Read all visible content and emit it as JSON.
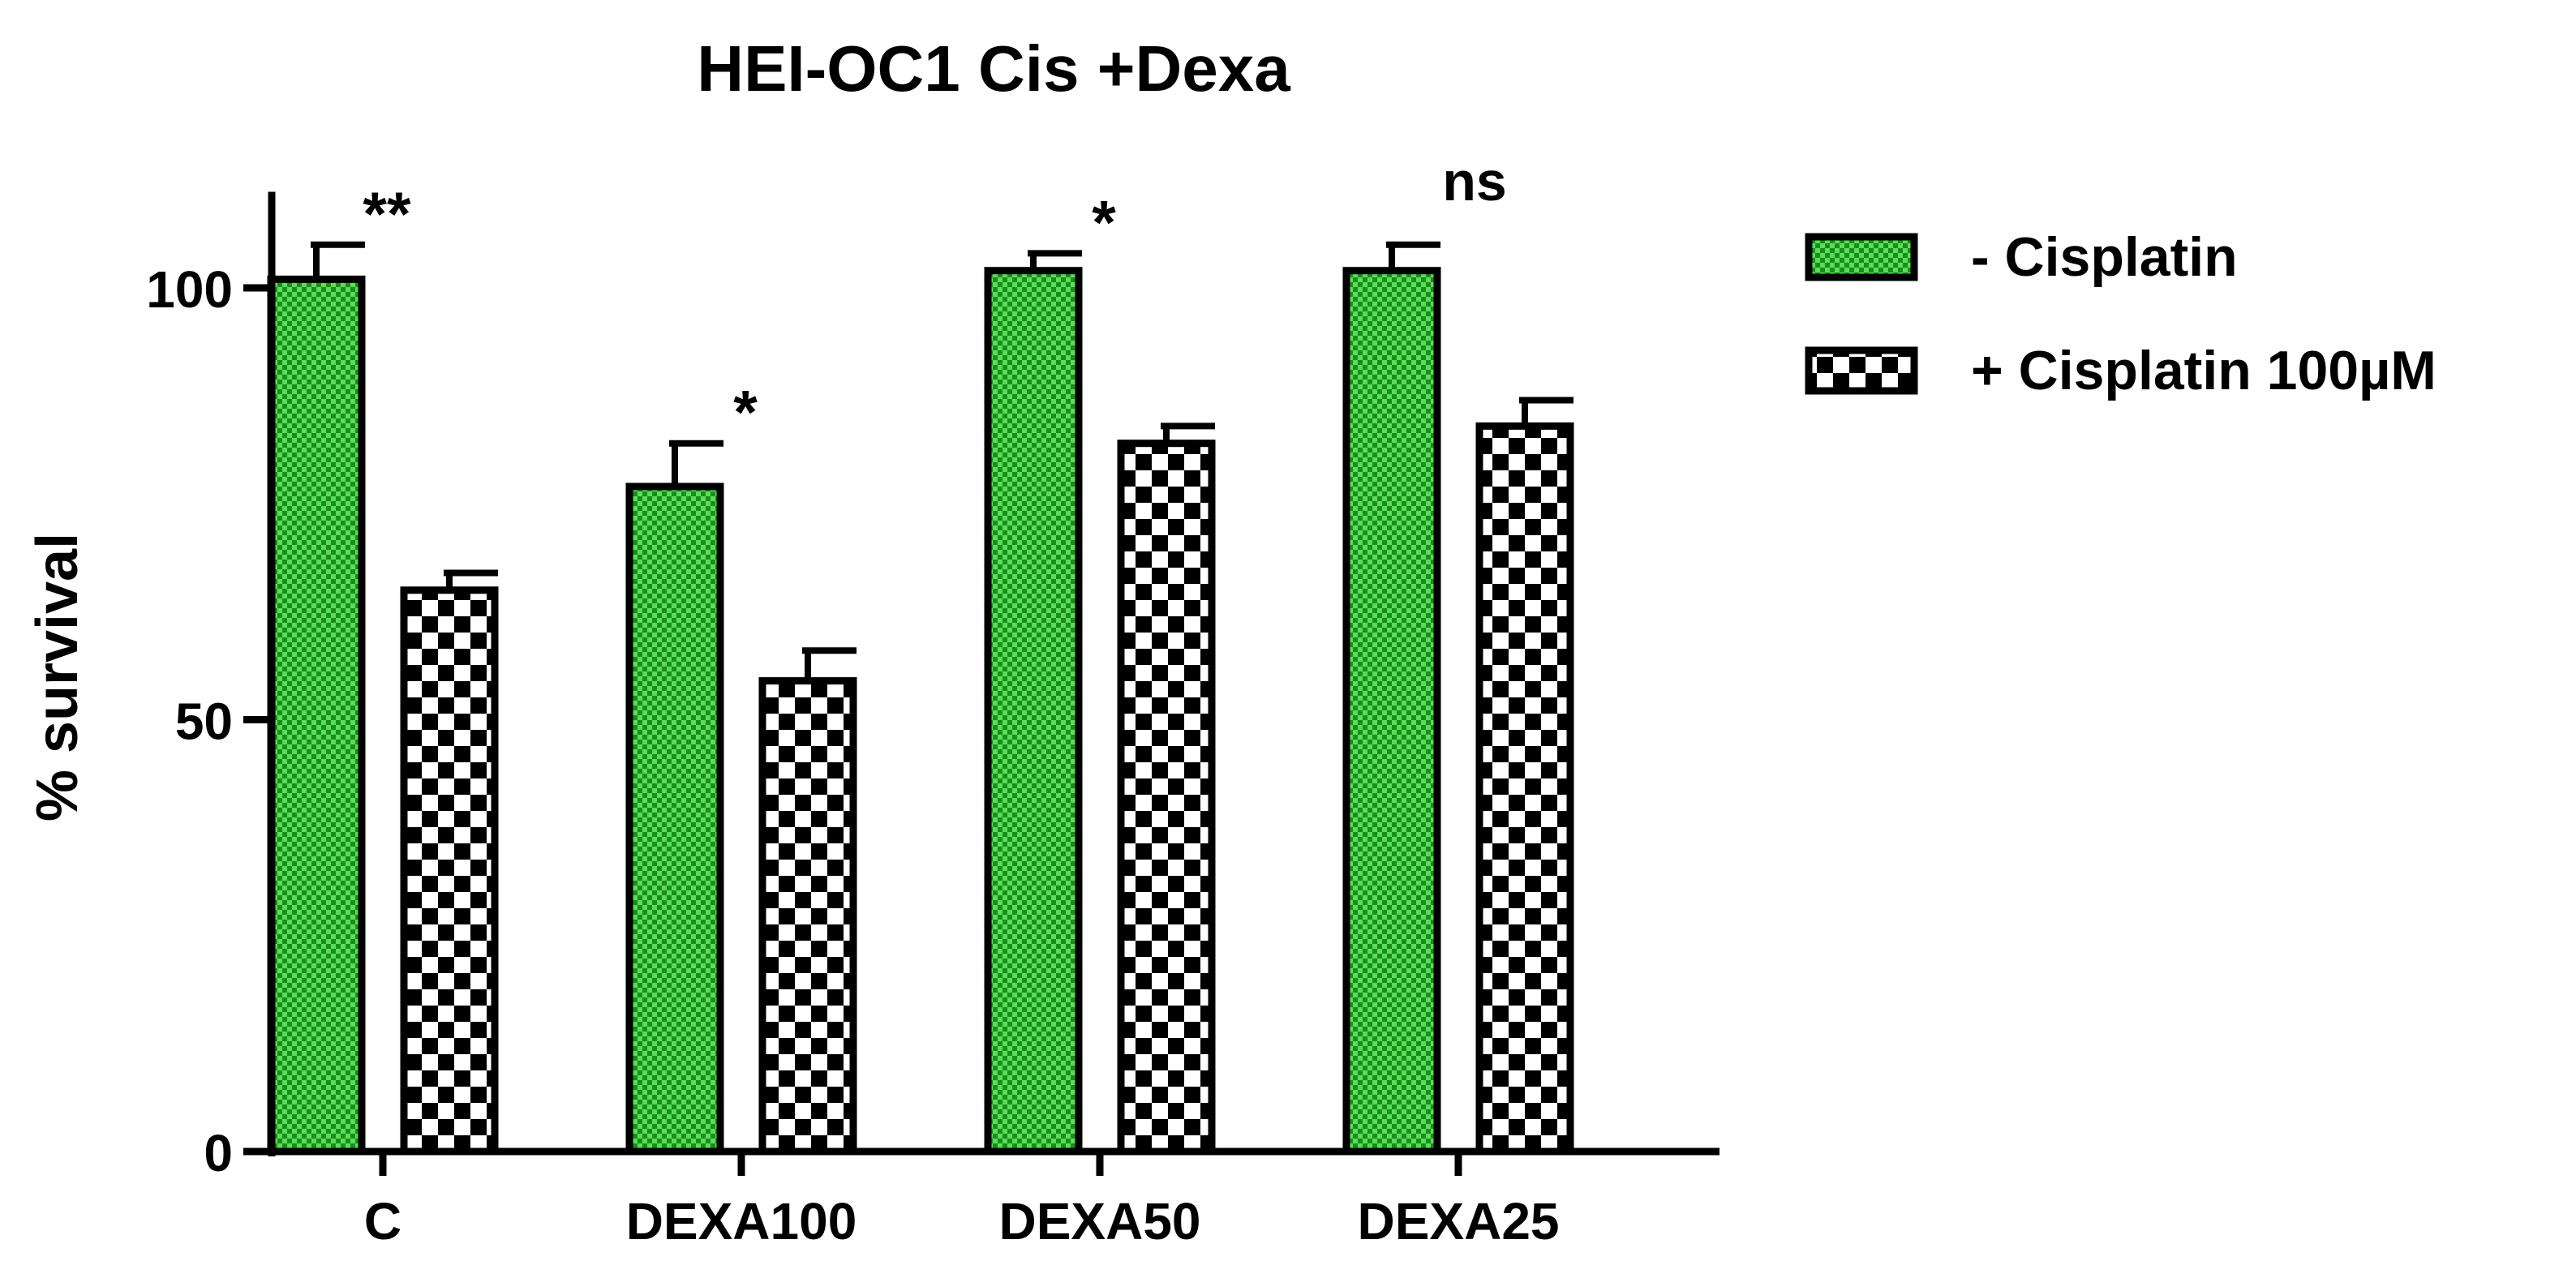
{
  "chart_data": {
    "type": "bar",
    "title": "HEI-OC1 Cis +Dexa",
    "xlabel": "",
    "ylabel": "% survival",
    "ylim": [
      0,
      110
    ],
    "yticks": [
      0,
      50,
      100
    ],
    "categories": [
      "C",
      "DEXA100",
      "DEXA50",
      "DEXA25"
    ],
    "series": [
      {
        "name": "- Cisplatin",
        "values": [
          101,
          77,
          102,
          102
        ],
        "errors": [
          4,
          5,
          2,
          3
        ],
        "color": "#33cc33",
        "pattern": "green-checker"
      },
      {
        "name": "+ Cisplatin 100µM",
        "values": [
          65,
          54.5,
          82,
          84
        ],
        "errors": [
          2,
          3.5,
          2,
          3
        ],
        "color": "#000000",
        "pattern": "black-white-checker"
      }
    ],
    "annotations": [
      {
        "category": "C",
        "text": "**"
      },
      {
        "category": "DEXA100",
        "text": "*"
      },
      {
        "category": "DEXA50",
        "text": "*"
      },
      {
        "category": "DEXA25",
        "text": "ns"
      }
    ],
    "legend_position": "right",
    "grid": false
  }
}
